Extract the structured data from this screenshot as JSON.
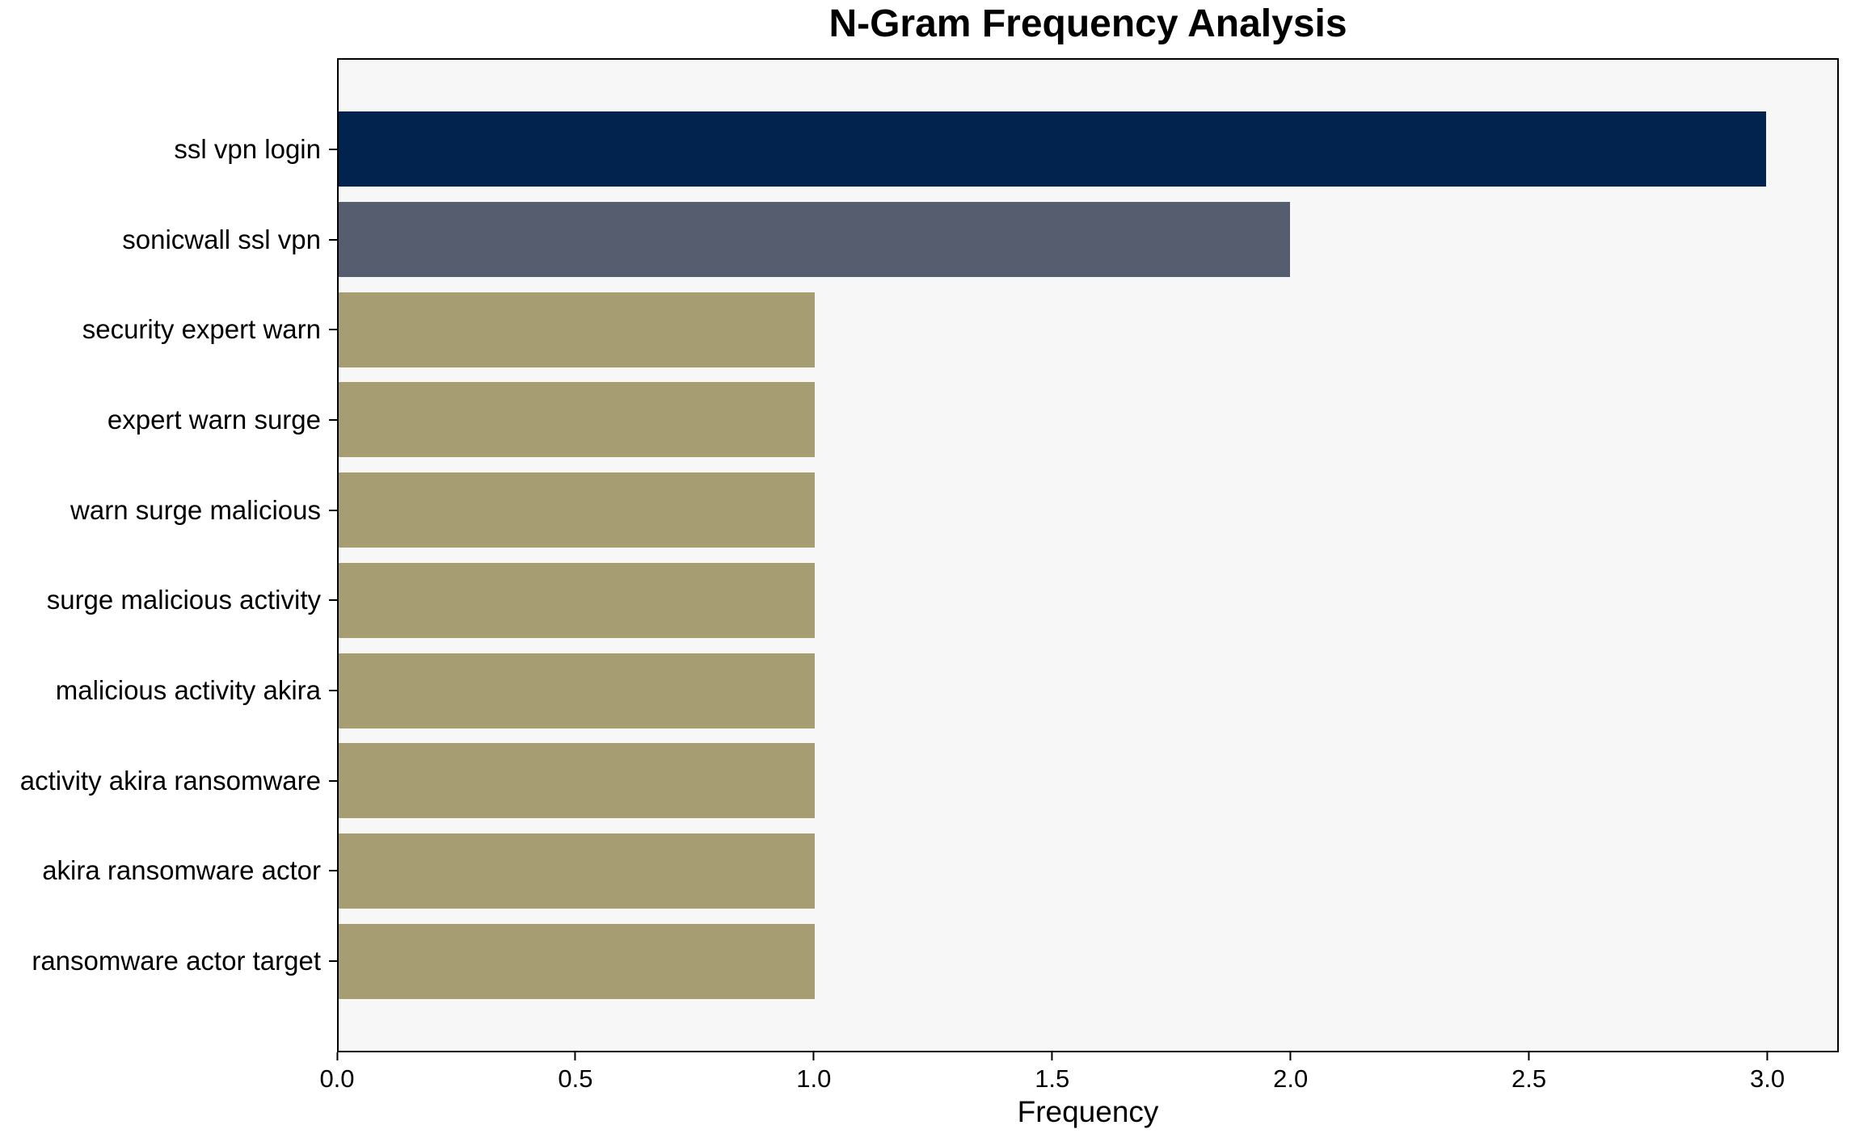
{
  "chart_data": {
    "type": "bar",
    "orientation": "horizontal",
    "title": "N-Gram Frequency Analysis",
    "xlabel": "Frequency",
    "ylabel": "",
    "categories": [
      "ssl vpn login",
      "sonicwall ssl vpn",
      "security expert warn",
      "expert warn surge",
      "warn surge malicious",
      "surge malicious activity",
      "malicious activity akira",
      "activity akira ransomware",
      "akira ransomware actor",
      "ransomware actor target"
    ],
    "values": [
      3,
      2,
      1,
      1,
      1,
      1,
      1,
      1,
      1,
      1
    ],
    "bar_colors": [
      "#02234d",
      "#565d6e",
      "#a69d72",
      "#a69d72",
      "#a69d72",
      "#a69d72",
      "#a69d72",
      "#a69d72",
      "#a69d72",
      "#a69d72"
    ],
    "xlim": [
      0,
      3.15
    ],
    "xticks": [
      0.0,
      0.5,
      1.0,
      1.5,
      2.0,
      2.5,
      3.0
    ],
    "xtick_labels": [
      "0.0",
      "0.5",
      "1.0",
      "1.5",
      "2.0",
      "2.5",
      "3.0"
    ],
    "grid": false,
    "legend": "none",
    "plot_background": "#f7f7f7",
    "axis_color": "#000000",
    "text_color": "#000000"
  }
}
